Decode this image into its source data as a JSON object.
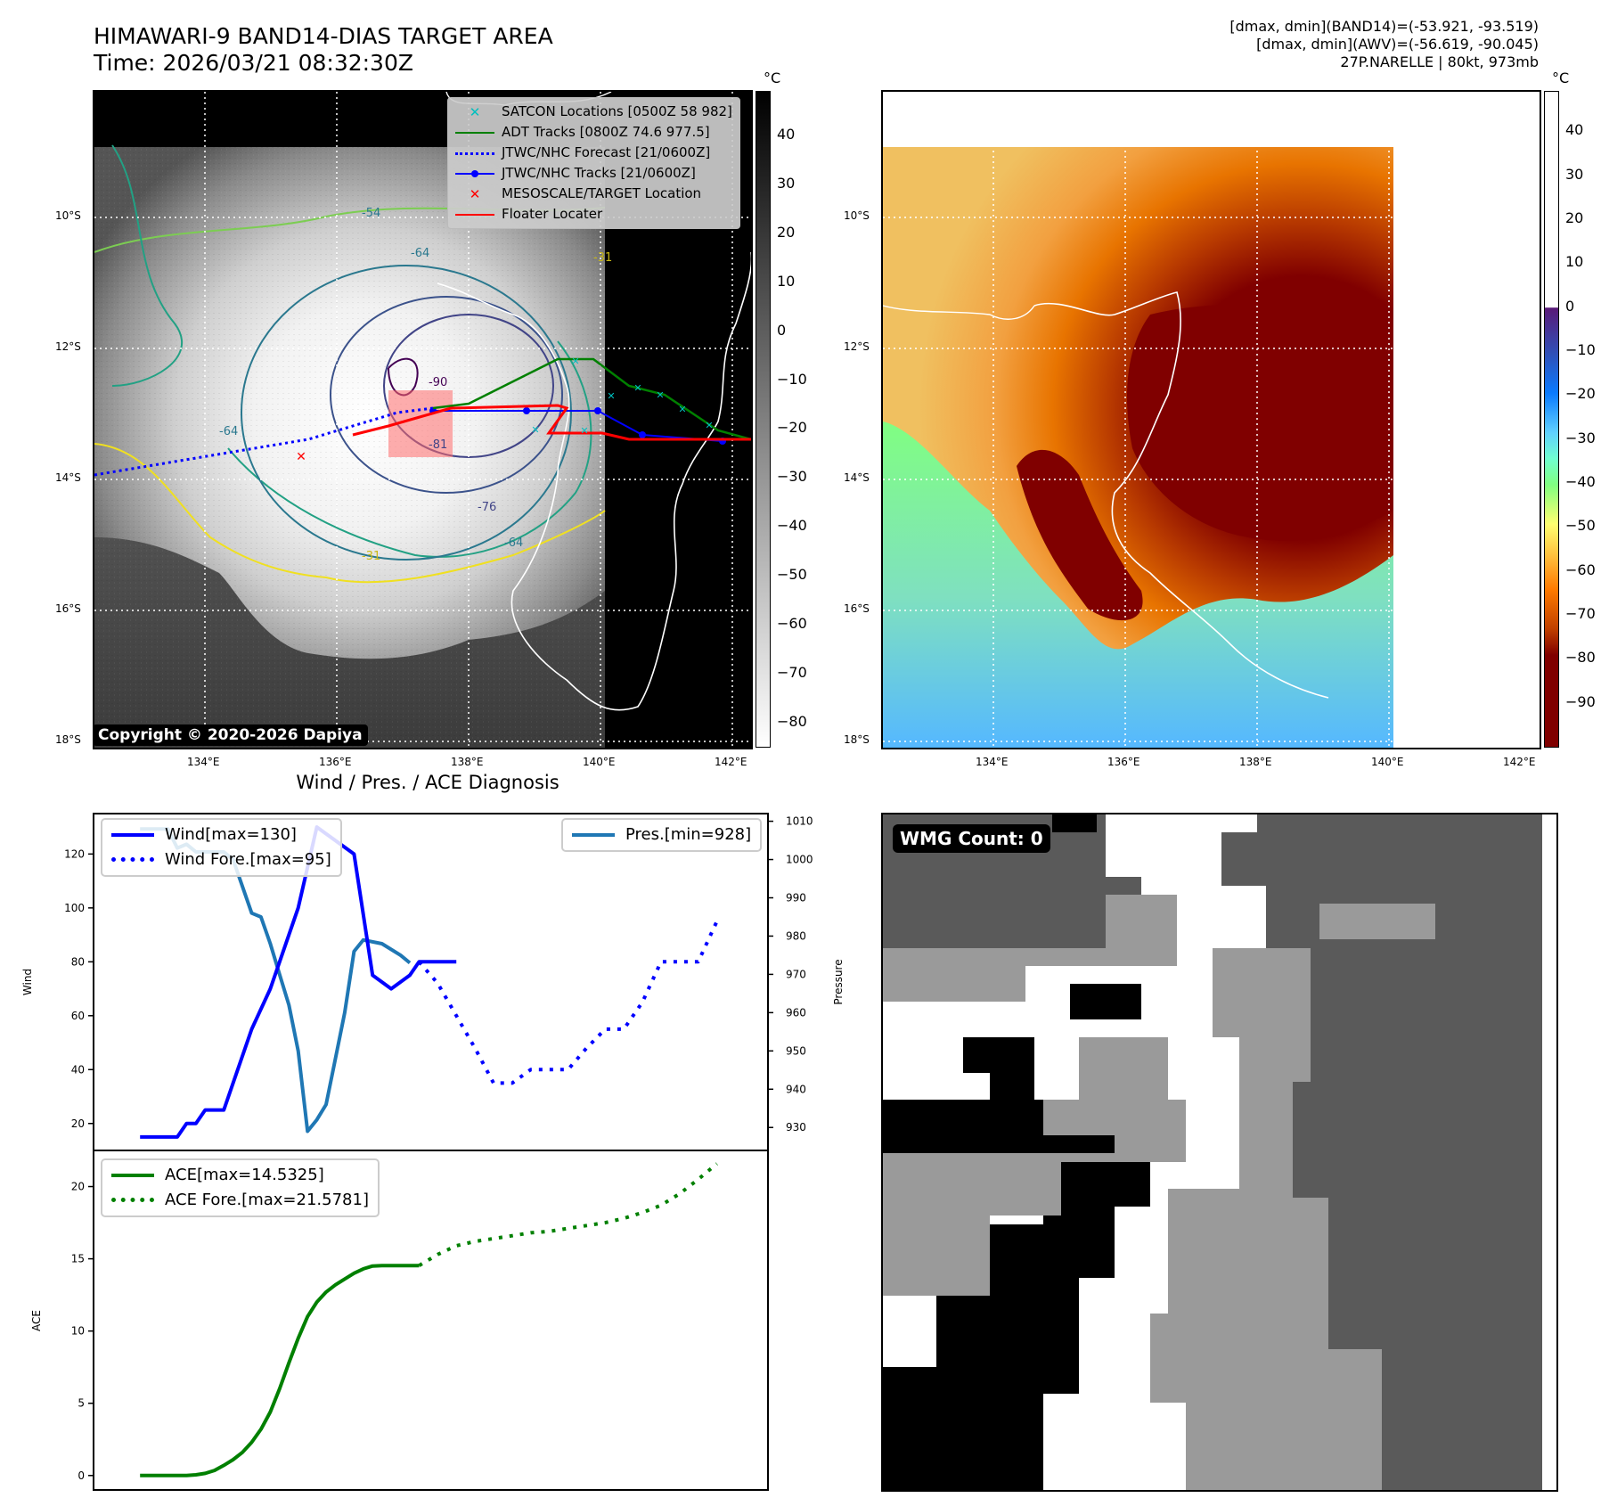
{
  "header": {
    "title_line1": "HIMAWARI-9 BAND14-DIAS TARGET AREA",
    "title_line2": "Time: 2026/03/21 08:32:30Z",
    "info_line1": "[dmax, dmin](BAND14)=(-53.921, -93.519)",
    "info_line2": "[dmax, dmin](AWV)=(-56.619, -90.045)",
    "info_line3": "27P.NARELLE | 80kt, 973mb"
  },
  "maps": {
    "lat_labels": [
      "10°S",
      "12°S",
      "14°S",
      "16°S",
      "18°S"
    ],
    "lon_labels": [
      "134°E",
      "136°E",
      "138°E",
      "140°E",
      "142°E"
    ],
    "lon_range": [
      132.35,
      142.3
    ],
    "lat_range": [
      -18.0,
      -8.0
    ],
    "copyright": "Copyright © 2020-2026 Dapiya",
    "contour_labels": [
      "-64",
      "-81",
      "-90",
      "-76",
      "-64",
      "-54",
      "-64",
      "-31",
      "-31"
    ],
    "legend": [
      {
        "label": "SATCON Locations [0500Z 58 982]",
        "symbol": "x",
        "color": "#00bfbf"
      },
      {
        "label": "ADT Tracks [0800Z 74.6 977.5]",
        "symbol": "line",
        "color": "#008000"
      },
      {
        "label": "JTWC/NHC Forecast [21/0600Z]",
        "symbol": "dotted",
        "color": "#0000ff"
      },
      {
        "label": "JTWC/NHC Tracks [21/0600Z]",
        "symbol": "line-dot",
        "color": "#0000ff"
      },
      {
        "label": "MESOSCALE/TARGET Location",
        "symbol": "x",
        "color": "#ff0000"
      },
      {
        "label": "Floater Locater",
        "symbol": "line",
        "color": "#ff0000"
      }
    ],
    "left_colorbar": {
      "unit": "°C",
      "ticks": [
        "40",
        "30",
        "20",
        "10",
        "0",
        "−10",
        "−20",
        "−30",
        "−40",
        "−50",
        "−60",
        "−70",
        "−80"
      ],
      "range": [
        -85,
        49
      ],
      "colormap": "gray"
    },
    "right_colorbar": {
      "unit": "°C",
      "ticks": [
        "40",
        "30",
        "20",
        "10",
        "0",
        "−10",
        "−20",
        "−30",
        "−40",
        "−50",
        "−60",
        "−70",
        "−80",
        "−90"
      ],
      "range": [
        -100,
        49
      ],
      "colormap": "dias"
    }
  },
  "diagnosis": {
    "title": "Wind / Pres. / ACE Diagnosis",
    "wind_ylabel": "Wind",
    "pres_ylabel": "Pressure",
    "ace_ylabel": "ACE",
    "wind_ticks": [
      "20",
      "40",
      "60",
      "80",
      "100",
      "120"
    ],
    "pres_ticks": [
      "930",
      "940",
      "950",
      "960",
      "970",
      "980",
      "990",
      "1000",
      "1010"
    ],
    "ace_ticks": [
      "0",
      "5",
      "10",
      "15",
      "20"
    ],
    "legend_wind": "Wind[max=130]",
    "legend_wind_fore": "Wind Fore.[max=95]",
    "legend_pres": "Pres.[min=928]",
    "legend_ace": "ACE[max=14.5325]",
    "legend_ace_fore": "ACE Fore.[max=21.5781]"
  },
  "wmg": {
    "badge": "WMG Count: 0"
  },
  "chart_data": [
    {
      "type": "line",
      "title": "Wind / Pres. / ACE Diagnosis",
      "ylabel": "Wind",
      "ylim": [
        10,
        135
      ],
      "y2label": "Pressure",
      "y2lim": [
        924,
        1012
      ],
      "x": [
        0,
        1,
        2,
        3,
        4,
        5,
        6,
        7,
        8,
        9,
        10,
        11,
        12,
        13,
        14,
        15,
        16,
        17,
        18,
        19,
        20,
        21,
        22,
        23,
        24,
        25,
        26,
        27,
        28,
        29,
        30,
        31,
        32,
        33,
        34,
        35,
        36,
        37,
        38,
        39,
        40,
        41,
        42,
        43,
        44,
        45,
        46,
        47,
        48,
        49,
        50,
        51,
        52,
        53,
        54,
        55,
        56,
        57,
        58,
        59,
        60,
        61,
        62,
        63,
        64,
        65,
        66,
        67,
        68,
        69,
        70,
        71,
        72,
        73,
        74,
        75,
        76,
        77,
        78,
        79,
        80,
        81,
        82,
        83,
        84,
        85,
        86,
        87,
        88,
        89,
        90,
        91,
        92,
        93,
        94,
        95,
        96,
        97,
        98,
        99,
        100,
        101,
        102,
        103,
        104,
        105,
        106,
        107,
        108,
        109,
        110,
        111,
        112,
        113,
        114,
        115,
        116,
        117,
        118,
        119,
        120,
        121,
        122,
        123,
        124,
        125,
        126,
        127,
        128,
        129,
        130,
        131,
        132,
        133,
        134,
        135,
        136,
        137,
        138,
        139,
        140,
        141,
        142,
        143,
        144,
        145,
        146,
        147,
        148,
        149
      ],
      "series": [
        {
          "name": "Wind[max=130]",
          "style": "solid",
          "color": "#0000ff",
          "x": [
            0,
            8,
            10,
            12,
            14,
            16,
            18,
            24,
            28,
            34,
            38,
            46,
            50,
            54,
            58,
            60,
            64,
            68
          ],
          "values": [
            15,
            15,
            20,
            20,
            25,
            25,
            25,
            55,
            70,
            100,
            130,
            120,
            75,
            70,
            75,
            80,
            80,
            80
          ]
        },
        {
          "name": "Wind Fore.[max=95]",
          "style": "dotted",
          "color": "#0000ff",
          "x": [
            60,
            64,
            68,
            72,
            76,
            80,
            84,
            88,
            92,
            96,
            100,
            104,
            108,
            112,
            116,
            120,
            124
          ],
          "values": [
            80,
            72,
            60,
            48,
            35,
            35,
            40,
            40,
            40,
            48,
            55,
            55,
            65,
            80,
            80,
            80,
            95
          ]
        },
        {
          "name": "Pres.[min=928]",
          "style": "solid",
          "color": "#1f77b4",
          "axis": "y2",
          "x": [
            0,
            6,
            8,
            10,
            12,
            14,
            16,
            18,
            20,
            24,
            26,
            28,
            30,
            32,
            34,
            36,
            38,
            40,
            42,
            44,
            46,
            48,
            52,
            56,
            58
          ],
          "values": [
            1008,
            1008,
            1003,
            1004,
            1002,
            1002,
            1002,
            1002,
            1000,
            986,
            985,
            978,
            970,
            962,
            950,
            929,
            932,
            936,
            948,
            960,
            976,
            979,
            978,
            975,
            973
          ]
        }
      ]
    },
    {
      "type": "line",
      "ylabel": "ACE",
      "ylim": [
        -1,
        22.5
      ],
      "series": [
        {
          "name": "ACE[max=14.5325]",
          "style": "solid",
          "color": "#008000",
          "x": [
            0,
            10,
            12,
            14,
            16,
            18,
            20,
            22,
            24,
            26,
            28,
            30,
            32,
            34,
            36,
            38,
            40,
            42,
            44,
            46,
            48,
            50,
            52,
            54,
            56,
            58,
            60
          ],
          "values": [
            0,
            0,
            0.05,
            0.15,
            0.35,
            0.7,
            1.1,
            1.6,
            2.3,
            3.2,
            4.4,
            6.0,
            7.8,
            9.5,
            11.0,
            12.0,
            12.7,
            13.2,
            13.6,
            14.0,
            14.3,
            14.5,
            14.53,
            14.53,
            14.53,
            14.53,
            14.53
          ]
        },
        {
          "name": "ACE Fore.[max=21.5781]",
          "style": "dotted",
          "color": "#008000",
          "x": [
            60,
            64,
            68,
            72,
            76,
            80,
            84,
            88,
            92,
            96,
            100,
            104,
            108,
            112,
            116,
            120,
            124
          ],
          "values": [
            14.53,
            15.3,
            15.9,
            16.2,
            16.4,
            16.6,
            16.8,
            16.9,
            17.1,
            17.3,
            17.5,
            17.8,
            18.2,
            18.7,
            19.5,
            20.5,
            21.58
          ]
        }
      ]
    }
  ]
}
